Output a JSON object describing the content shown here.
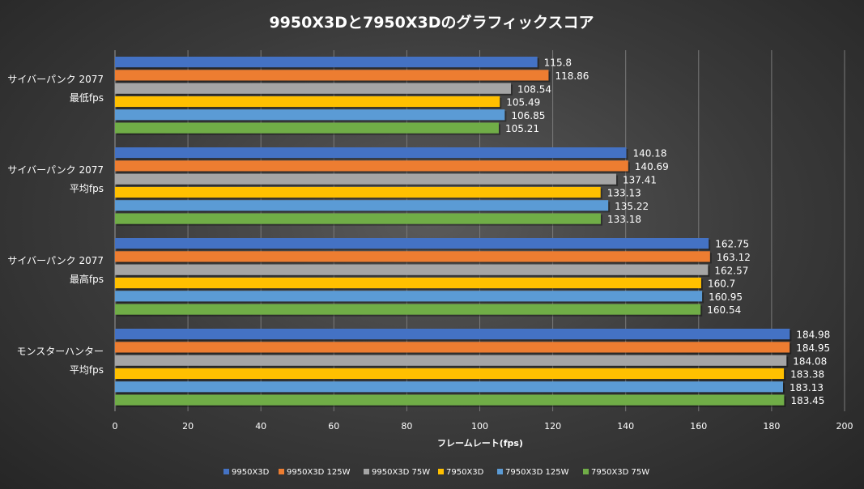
{
  "chart_data": {
    "type": "bar",
    "orientation": "horizontal",
    "title": "9950X3Dと7950X3Dのグラフィックスコア",
    "xlabel": "フレームレート(fps)",
    "ylabel": "",
    "xlim": [
      0,
      200
    ],
    "xticks": [
      0,
      20,
      40,
      60,
      80,
      100,
      120,
      140,
      160,
      180,
      200
    ],
    "grid": true,
    "legend_position": "bottom",
    "categories": [
      [
        "サイバーパンク 2077",
        "最低fps"
      ],
      [
        "サイバーパンク 2077",
        "平均fps"
      ],
      [
        "サイバーパンク 2077",
        "最高fps"
      ],
      [
        "モンスターハンター",
        "平均fps"
      ]
    ],
    "series": [
      {
        "name": "9950X3D",
        "color": "#4472c4",
        "values": [
          115.8,
          140.18,
          162.75,
          184.98
        ]
      },
      {
        "name": "9950X3D 125W",
        "color": "#ed7d31",
        "values": [
          118.86,
          140.69,
          163.12,
          184.95
        ]
      },
      {
        "name": "9950X3D 75W",
        "color": "#a5a5a5",
        "values": [
          108.54,
          137.41,
          162.57,
          184.08
        ]
      },
      {
        "name": "7950X3D",
        "color": "#ffc000",
        "values": [
          105.49,
          133.13,
          160.7,
          183.38
        ]
      },
      {
        "name": "7950X3D 125W",
        "color": "#5b9bd5",
        "values": [
          106.85,
          135.22,
          160.95,
          183.13
        ]
      },
      {
        "name": "7950X3D 75W",
        "color": "#70ad47",
        "values": [
          105.21,
          133.18,
          160.54,
          183.45
        ]
      }
    ]
  }
}
